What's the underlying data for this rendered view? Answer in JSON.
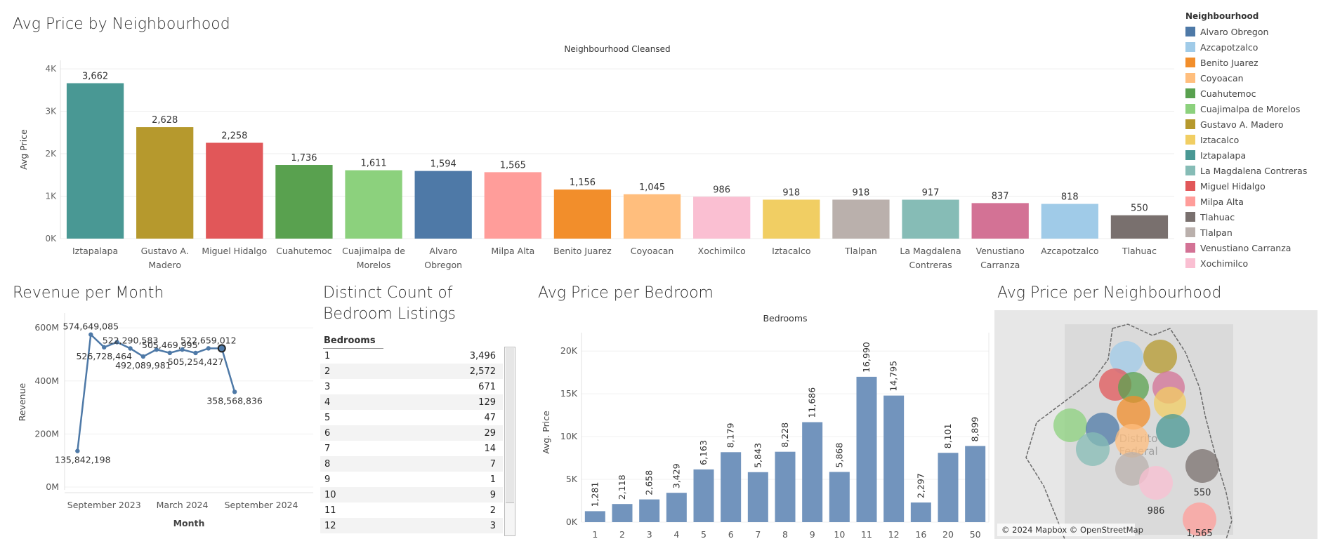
{
  "titles": {
    "neighbourhood": "Avg Price by Neighbourhood",
    "revenue": "Revenue per Month",
    "distinct_line1": "Distinct Count of",
    "distinct_line2": "Bedroom Listings",
    "bedroom": "Avg Price per Bedroom",
    "map": "Avg Price per Neighbourhood"
  },
  "legend": {
    "title": "Neighbourhood",
    "items": [
      {
        "label": "Alvaro Obregon",
        "color": "#4e79a7"
      },
      {
        "label": "Azcapotzalco",
        "color": "#a0cbe8"
      },
      {
        "label": "Benito Juarez",
        "color": "#f28e2b"
      },
      {
        "label": "Coyoacan",
        "color": "#ffbe7d"
      },
      {
        "label": "Cuahutemoc",
        "color": "#59a14f"
      },
      {
        "label": "Cuajimalpa de Morelos",
        "color": "#8cd17d"
      },
      {
        "label": "Gustavo A. Madero",
        "color": "#b6992d"
      },
      {
        "label": "Iztacalco",
        "color": "#f1ce63"
      },
      {
        "label": "Iztapalapa",
        "color": "#499894"
      },
      {
        "label": "La Magdalena Contreras",
        "color": "#86bcb6"
      },
      {
        "label": "Miguel Hidalgo",
        "color": "#e15759"
      },
      {
        "label": "Milpa Alta",
        "color": "#ff9d9a"
      },
      {
        "label": "Tlahuac",
        "color": "#79706e"
      },
      {
        "label": "Tlalpan",
        "color": "#bab0ac"
      },
      {
        "label": "Venustiano Carranza",
        "color": "#d37295"
      },
      {
        "label": "Xochimilco",
        "color": "#fabfd2"
      }
    ]
  },
  "chart_data": [
    {
      "id": "avg-price-neighbourhood",
      "type": "bar",
      "header": "Neighbourhood Cleansed",
      "ylabel": "Avg Price",
      "ylim": [
        0,
        4200
      ],
      "yticks": [
        0,
        1000,
        2000,
        3000,
        4000
      ],
      "ytick_labels": [
        "0K",
        "1K",
        "2K",
        "3K",
        "4K"
      ],
      "categories": [
        {
          "lines": [
            "Iztapalapa"
          ],
          "value": 3662,
          "label": "3,662",
          "color": "#499894"
        },
        {
          "lines": [
            "Gustavo A.",
            "Madero"
          ],
          "value": 2628,
          "label": "2,628",
          "color": "#b6992d"
        },
        {
          "lines": [
            "Miguel Hidalgo"
          ],
          "value": 2258,
          "label": "2,258",
          "color": "#e15759"
        },
        {
          "lines": [
            "Cuahutemoc"
          ],
          "value": 1736,
          "label": "1,736",
          "color": "#59a14f"
        },
        {
          "lines": [
            "Cuajimalpa de",
            "Morelos"
          ],
          "value": 1611,
          "label": "1,611",
          "color": "#8cd17d"
        },
        {
          "lines": [
            "Alvaro",
            "Obregon"
          ],
          "value": 1594,
          "label": "1,594",
          "color": "#4e79a7"
        },
        {
          "lines": [
            "Milpa Alta"
          ],
          "value": 1565,
          "label": "1,565",
          "color": "#ff9d9a"
        },
        {
          "lines": [
            "Benito Juarez"
          ],
          "value": 1156,
          "label": "1,156",
          "color": "#f28e2b"
        },
        {
          "lines": [
            "Coyoacan"
          ],
          "value": 1045,
          "label": "1,045",
          "color": "#ffbe7d"
        },
        {
          "lines": [
            "Xochimilco"
          ],
          "value": 986,
          "label": "986",
          "color": "#fabfd2"
        },
        {
          "lines": [
            "Iztacalco"
          ],
          "value": 918,
          "label": "918",
          "color": "#f1ce63"
        },
        {
          "lines": [
            "Tlalpan"
          ],
          "value": 918,
          "label": "918",
          "color": "#bab0ac"
        },
        {
          "lines": [
            "La Magdalena",
            "Contreras"
          ],
          "value": 917,
          "label": "917",
          "color": "#86bcb6"
        },
        {
          "lines": [
            "Venustiano",
            "Carranza"
          ],
          "value": 837,
          "label": "837",
          "color": "#d37295"
        },
        {
          "lines": [
            "Azcapotzalco"
          ],
          "value": 818,
          "label": "818",
          "color": "#a0cbe8"
        },
        {
          "lines": [
            "Tlahuac"
          ],
          "value": 550,
          "label": "550",
          "color": "#79706e"
        }
      ]
    },
    {
      "id": "revenue-per-month",
      "type": "line",
      "xlabel": "Month",
      "ylabel": "Revenue",
      "ylim": [
        0,
        640000000
      ],
      "yticks": [
        0,
        200000000,
        400000000,
        600000000
      ],
      "ytick_labels": [
        "0M",
        "200M",
        "400M",
        "600M"
      ],
      "xlim": [
        "2023-06-01",
        "2024-12-31"
      ],
      "xticks": [
        "2023-09-01",
        "2024-03-01",
        "2024-09-01"
      ],
      "xtick_labels": [
        "September 2023",
        "March 2024",
        "September 2024"
      ],
      "color": "#4e79a7",
      "points": [
        {
          "x": "2023-07-01",
          "y": 135842198,
          "label": "135,842,198",
          "pos": "below"
        },
        {
          "x": "2023-08-01",
          "y": 574649085,
          "label": "574,649,085",
          "pos": "above"
        },
        {
          "x": "2023-09-01",
          "y": 526728464,
          "label": "526,728,464",
          "pos": "below"
        },
        {
          "x": "2023-10-01",
          "y": 546000000
        },
        {
          "x": "2023-11-01",
          "y": 522290583,
          "label": "522,290,583",
          "pos": "above"
        },
        {
          "x": "2023-12-01",
          "y": 492089981,
          "label": "492,089,981",
          "pos": "below"
        },
        {
          "x": "2024-01-01",
          "y": 518000000
        },
        {
          "x": "2024-02-01",
          "y": 505469995,
          "label": "505,469,995",
          "pos": "above"
        },
        {
          "x": "2024-03-01",
          "y": 518000000
        },
        {
          "x": "2024-04-01",
          "y": 505254427,
          "label": "505,254,427",
          "pos": "below"
        },
        {
          "x": "2024-05-01",
          "y": 522659012,
          "label": "522,659,012",
          "pos": "above"
        },
        {
          "x": "2024-06-01",
          "y": 522659012,
          "highlight": true
        },
        {
          "x": "2024-07-01",
          "y": 358568836,
          "label": "358,568,836",
          "pos": "below"
        }
      ]
    },
    {
      "id": "distinct-bedroom-listings",
      "type": "table",
      "column_header": "Bedrooms",
      "rows": [
        {
          "bedrooms": "1",
          "count": "3,496"
        },
        {
          "bedrooms": "2",
          "count": "2,572"
        },
        {
          "bedrooms": "3",
          "count": "671"
        },
        {
          "bedrooms": "4",
          "count": "129"
        },
        {
          "bedrooms": "5",
          "count": "47"
        },
        {
          "bedrooms": "6",
          "count": "29"
        },
        {
          "bedrooms": "7",
          "count": "14"
        },
        {
          "bedrooms": "8",
          "count": "7"
        },
        {
          "bedrooms": "9",
          "count": "1"
        },
        {
          "bedrooms": "10",
          "count": "9"
        },
        {
          "bedrooms": "11",
          "count": "2"
        },
        {
          "bedrooms": "12",
          "count": "3"
        }
      ]
    },
    {
      "id": "avg-price-bedroom",
      "type": "bar",
      "header": "Bedrooms",
      "ylabel": "Avg. Price",
      "ylim": [
        0,
        21000
      ],
      "yticks": [
        0,
        5000,
        10000,
        15000,
        20000
      ],
      "ytick_labels": [
        "0K",
        "5K",
        "10K",
        "15K",
        "20K"
      ],
      "color": "#7294bd",
      "categories": [
        {
          "label": "1",
          "value": 1281,
          "text": "1,281"
        },
        {
          "label": "2",
          "value": 2118,
          "text": "2,118"
        },
        {
          "label": "3",
          "value": 2658,
          "text": "2,658"
        },
        {
          "label": "4",
          "value": 3429,
          "text": "3,429"
        },
        {
          "label": "5",
          "value": 6163,
          "text": "6,163"
        },
        {
          "label": "6",
          "value": 8179,
          "text": "8,179"
        },
        {
          "label": "7",
          "value": 5843,
          "text": "5,843"
        },
        {
          "label": "8",
          "value": 8228,
          "text": "8,228"
        },
        {
          "label": "9",
          "value": 11686,
          "text": "11,686"
        },
        {
          "label": "10",
          "value": 5868,
          "text": "5,868"
        },
        {
          "label": "11",
          "value": 16990,
          "text": "16,990"
        },
        {
          "label": "12",
          "value": 14795,
          "text": "14,795"
        },
        {
          "label": "16",
          "value": 2297,
          "text": "2,297"
        },
        {
          "label": "20",
          "value": 8101,
          "text": "8,101"
        },
        {
          "label": "50",
          "value": 8899,
          "text": "8,899"
        }
      ]
    }
  ],
  "map": {
    "region_label_1": "Distrito",
    "region_label_2": "Federal",
    "attribution": "© 2024 Mapbox © OpenStreetMap",
    "value_labels": [
      "550",
      "986",
      "1,565"
    ]
  }
}
